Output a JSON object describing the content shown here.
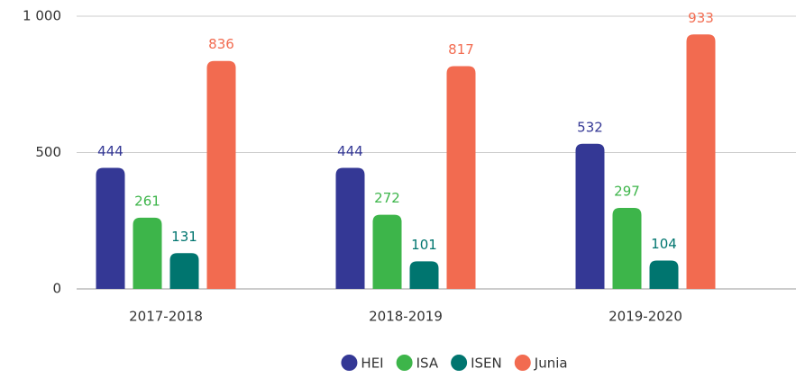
{
  "chart_data": {
    "type": "bar",
    "categories": [
      "2017-2018",
      "2018-2019",
      "2019-2020"
    ],
    "series": [
      {
        "name": "HEI",
        "color": "#343895",
        "values": [
          444,
          444,
          532
        ]
      },
      {
        "name": "ISA",
        "color": "#3db54a",
        "values": [
          261,
          272,
          297
        ]
      },
      {
        "name": "ISEN",
        "color": "#00756f",
        "values": [
          131,
          101,
          104
        ]
      },
      {
        "name": "Junia",
        "color": "#f26b50",
        "values": [
          836,
          817,
          933
        ]
      }
    ],
    "ylim": [
      0,
      1000
    ],
    "yticks": [
      0,
      500,
      {
        "value": 1000,
        "label": "1 000"
      }
    ],
    "grid": true,
    "legend": "bottom"
  }
}
